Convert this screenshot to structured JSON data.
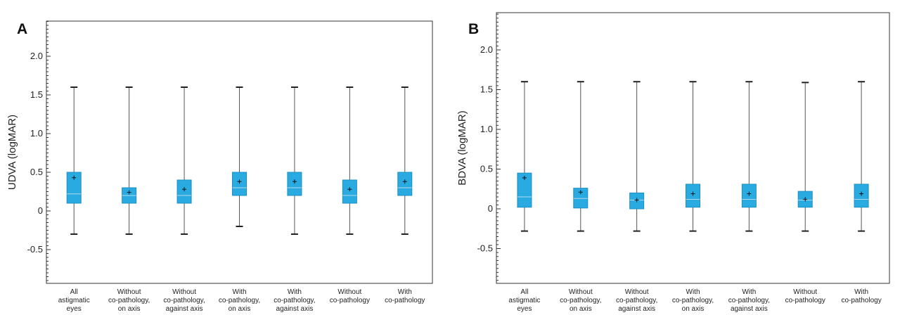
{
  "chart_data": [
    {
      "type": "box",
      "panel_label": "A",
      "ylabel": "UDVA (logMAR)",
      "ylim": [
        -0.92,
        2.47
      ],
      "yticks": [
        2.0,
        1.5,
        1.0,
        0.5,
        0,
        -0.5
      ],
      "ytick_labels": [
        "2.0",
        "1.5",
        "1.0",
        "0.5",
        "0",
        "-0.5"
      ],
      "colors": {
        "box": "#29abe2",
        "box_edge": "#1d8fc2",
        "whisker": "#555555",
        "median": "#b8d8e8"
      },
      "categories": [
        [
          "All",
          "astigmatic",
          "eyes"
        ],
        [
          "Without",
          "co-pathology,",
          "on axis"
        ],
        [
          "Without",
          "co-pathology,",
          "against axis"
        ],
        [
          "With",
          "co-pathology,",
          "on axis"
        ],
        [
          "With",
          "co-pathology,",
          "against axis"
        ],
        [
          "Without",
          "co-pathology"
        ],
        [
          "With",
          "co-pathology"
        ]
      ],
      "boxes": [
        {
          "min": -0.3,
          "q1": 0.1,
          "median": 0.22,
          "q3": 0.5,
          "max": 1.6,
          "mean": 0.43
        },
        {
          "min": -0.3,
          "q1": 0.1,
          "median": 0.2,
          "q3": 0.3,
          "max": 1.6,
          "mean": 0.24
        },
        {
          "min": -0.3,
          "q1": 0.1,
          "median": 0.2,
          "q3": 0.4,
          "max": 1.6,
          "mean": 0.28
        },
        {
          "min": -0.2,
          "q1": 0.2,
          "median": 0.3,
          "q3": 0.5,
          "max": 1.6,
          "mean": 0.38
        },
        {
          "min": -0.3,
          "q1": 0.2,
          "median": 0.3,
          "q3": 0.5,
          "max": 1.6,
          "mean": 0.38
        },
        {
          "min": -0.3,
          "q1": 0.1,
          "median": 0.2,
          "q3": 0.4,
          "max": 1.6,
          "mean": 0.28
        },
        {
          "min": -0.3,
          "q1": 0.2,
          "median": 0.3,
          "q3": 0.5,
          "max": 1.6,
          "mean": 0.38
        }
      ]
    },
    {
      "type": "box",
      "panel_label": "B",
      "ylabel": "BDVA (logMAR)",
      "ylim": [
        -0.92,
        2.47
      ],
      "yticks": [
        2.0,
        1.5,
        1.0,
        0.5,
        0,
        -0.5
      ],
      "ytick_labels": [
        "2.0",
        "1.5",
        "1.0",
        "0.5",
        "0",
        "-0.5"
      ],
      "colors": {
        "box": "#29abe2",
        "box_edge": "#1d8fc2",
        "whisker": "#555555",
        "median": "#b8d8e8"
      },
      "categories": [
        [
          "All",
          "astigmatic",
          "eyes"
        ],
        [
          "Without",
          "co-pathology,",
          "on axis"
        ],
        [
          "Without",
          "co-pathology,",
          "against axis"
        ],
        [
          "With",
          "co-pathology,",
          "on axis"
        ],
        [
          "With",
          "co-pathology,",
          "against axis"
        ],
        [
          "Without",
          "co-pathology"
        ],
        [
          "With",
          "co-pathology"
        ]
      ],
      "boxes": [
        {
          "min": -0.28,
          "q1": 0.02,
          "median": 0.15,
          "q3": 0.45,
          "max": 1.6,
          "mean": 0.39
        },
        {
          "min": -0.28,
          "q1": 0.01,
          "median": 0.13,
          "q3": 0.26,
          "max": 1.6,
          "mean": 0.21
        },
        {
          "min": -0.28,
          "q1": 0.0,
          "median": 0.11,
          "q3": 0.2,
          "max": 1.6,
          "mean": 0.11
        },
        {
          "min": -0.28,
          "q1": 0.02,
          "median": 0.12,
          "q3": 0.31,
          "max": 1.6,
          "mean": 0.19
        },
        {
          "min": -0.28,
          "q1": 0.02,
          "median": 0.12,
          "q3": 0.31,
          "max": 1.6,
          "mean": 0.19
        },
        {
          "min": -0.28,
          "q1": 0.02,
          "median": 0.11,
          "q3": 0.22,
          "max": 1.59,
          "mean": 0.12
        },
        {
          "min": -0.28,
          "q1": 0.02,
          "median": 0.12,
          "q3": 0.31,
          "max": 1.6,
          "mean": 0.19
        }
      ]
    }
  ]
}
